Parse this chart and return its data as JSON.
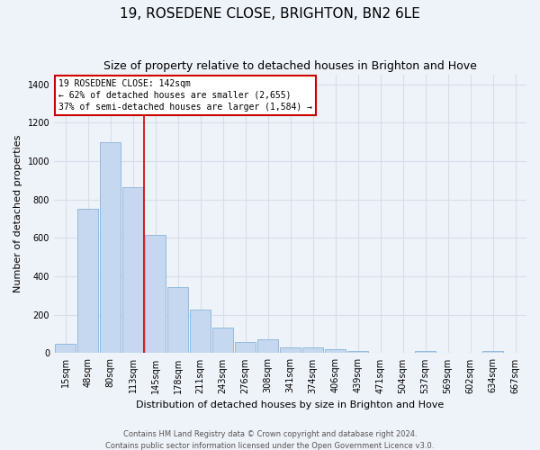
{
  "title": "19, ROSEDENE CLOSE, BRIGHTON, BN2 6LE",
  "subtitle": "Size of property relative to detached houses in Brighton and Hove",
  "xlabel": "Distribution of detached houses by size in Brighton and Hove",
  "ylabel": "Number of detached properties",
  "footer1": "Contains HM Land Registry data © Crown copyright and database right 2024.",
  "footer2": "Contains public sector information licensed under the Open Government Licence v3.0.",
  "categories": [
    "15sqm",
    "48sqm",
    "80sqm",
    "113sqm",
    "145sqm",
    "178sqm",
    "211sqm",
    "243sqm",
    "276sqm",
    "308sqm",
    "341sqm",
    "374sqm",
    "406sqm",
    "439sqm",
    "471sqm",
    "504sqm",
    "537sqm",
    "569sqm",
    "602sqm",
    "634sqm",
    "667sqm"
  ],
  "values": [
    47,
    750,
    1100,
    865,
    615,
    345,
    225,
    135,
    60,
    70,
    30,
    28,
    20,
    12,
    0,
    0,
    10,
    0,
    0,
    12,
    0
  ],
  "bar_color": "#c5d8ef",
  "bar_edge_color": "#8ab4d8",
  "property_line_x": 3.5,
  "property_label": "19 ROSEDENE CLOSE: 142sqm",
  "annotation_line1": "← 62% of detached houses are smaller (2,655)",
  "annotation_line2": "37% of semi-detached houses are larger (1,584) →",
  "annotation_box_facecolor": "#ffffff",
  "annotation_border_color": "#cc0000",
  "line_color": "#cc0000",
  "ylim": [
    0,
    1450
  ],
  "yticks": [
    0,
    200,
    400,
    600,
    800,
    1000,
    1200,
    1400
  ],
  "bg_color": "#eef2f9",
  "grid_color": "#d8dee8",
  "title_fontsize": 11,
  "subtitle_fontsize": 9,
  "xlabel_fontsize": 8,
  "ylabel_fontsize": 8,
  "tick_fontsize": 7,
  "footer_fontsize": 6
}
